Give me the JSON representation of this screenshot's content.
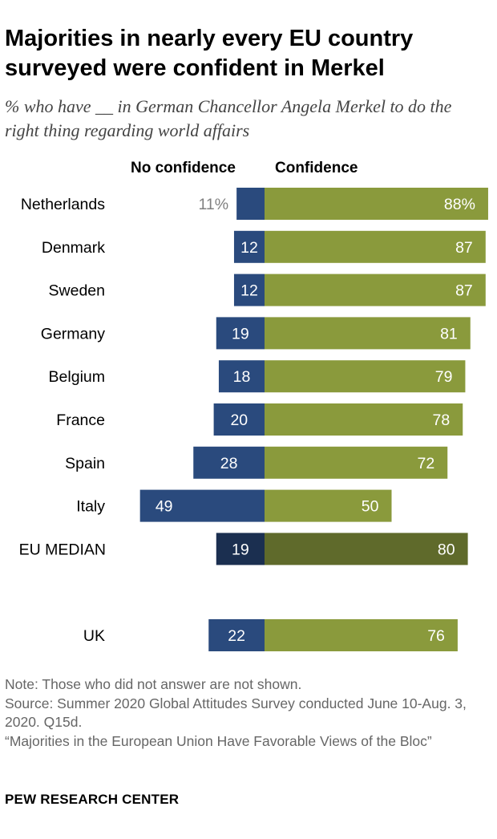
{
  "title": "Majorities in nearly every EU country surveyed were confident in Merkel",
  "subtitle": "% who have __ in German Chancellor Angela Merkel to do the right thing regarding world affairs",
  "colors": {
    "no_confidence": "#2a4a7d",
    "confidence": "#8a9a3c",
    "median_no_confidence": "#1b2f50",
    "median_confidence": "#5f6a2b",
    "outside_label": "#808080"
  },
  "chart_data": {
    "type": "bar",
    "orientation": "horizontal-diverging",
    "categories": [
      "Netherlands",
      "Denmark",
      "Sweden",
      "Germany",
      "Belgium",
      "France",
      "Spain",
      "Italy",
      "EU MEDIAN",
      "UK"
    ],
    "series": [
      {
        "name": "No confidence",
        "values": [
          11,
          12,
          12,
          19,
          18,
          20,
          28,
          49,
          19,
          22
        ]
      },
      {
        "name": "Confidence",
        "values": [
          88,
          87,
          87,
          81,
          79,
          78,
          72,
          50,
          80,
          76
        ]
      }
    ],
    "value_labels": {
      "No confidence": [
        "11%",
        "12",
        "12",
        "19",
        "18",
        "20",
        "28",
        "49",
        "19",
        "22"
      ],
      "Confidence": [
        "88%",
        "87",
        "87",
        "81",
        "79",
        "78",
        "72",
        "50",
        "80",
        "76"
      ]
    },
    "highlighted_category": "EU MEDIAN",
    "separated_category": "UK",
    "xlim": [
      -50,
      100
    ],
    "grid": false,
    "legend_placement": "top"
  },
  "footer": {
    "note": "Note: Those who did not answer are not shown.",
    "source": "Source: Summer 2020 Global Attitudes Survey conducted June 10-Aug. 3, 2020. Q15d.",
    "report": "“Majorities in the European Union Have Favorable Views of the Bloc”",
    "brand": "PEW RESEARCH CENTER"
  }
}
